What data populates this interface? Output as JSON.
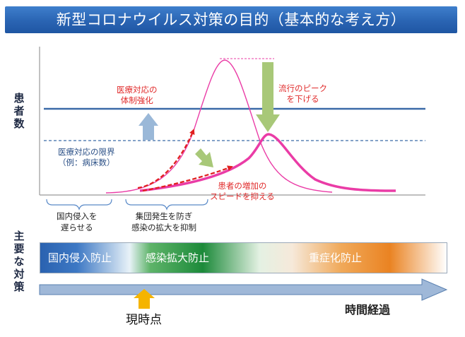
{
  "title": "新型コロナウイルス対策の目的（基本的な考え方）",
  "vertical_labels": {
    "patients": "患者数",
    "main_measures": "主要な対策"
  },
  "annotations": {
    "strengthen": "医療対応の\n体制強化",
    "lower_peak": "流行のピーク\nを下げる",
    "limit": "医療対応の限界\n（例：病床数）",
    "slow_spread": "患者の増加の\nスピードを抑える",
    "delay": "国内侵入を\n遅らせる",
    "cluster": "集団発生を防ぎ\n感染の拡大を抑制"
  },
  "band_labels": {
    "stage1": "国内侵入防止",
    "stage2": "感染拡大防止",
    "stage3": "重症化防止"
  },
  "current_point": "現時点",
  "time_axis": "時間経過",
  "colors": {
    "title_bg": "#2a64b3",
    "limit_line": "#3a6aa8",
    "curve": "#ea3ca6",
    "red_arrow": "#e02020",
    "green_arrow": "#a8c878",
    "blue_arrow": "#9ab8d8",
    "now_arrow": "#f5b400",
    "time_arrow": "#9fb8d8"
  }
}
